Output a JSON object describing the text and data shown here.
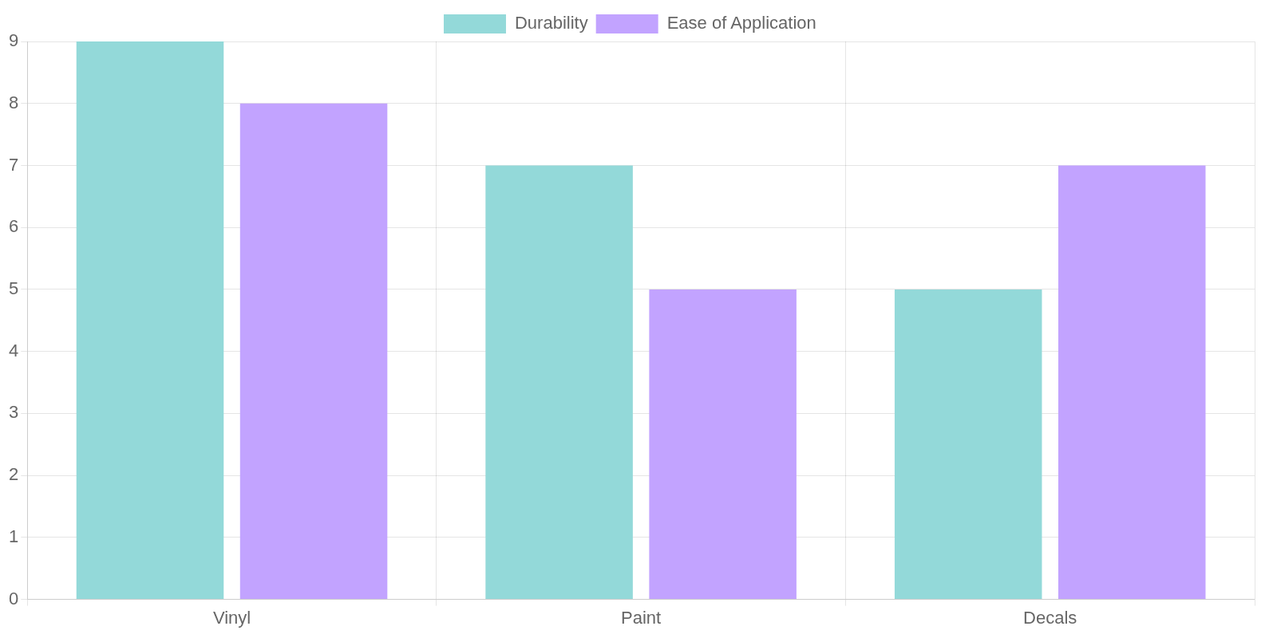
{
  "chart_data": {
    "type": "bar",
    "categories": [
      "Vinyl",
      "Paint",
      "Decals"
    ],
    "series": [
      {
        "name": "Durability",
        "color": "#93d9d9",
        "values": [
          9,
          7,
          5
        ]
      },
      {
        "name": "Ease of Application",
        "color": "#c2a3ff",
        "values": [
          8,
          5,
          7
        ]
      }
    ],
    "ylim": [
      0,
      9
    ],
    "yticks": [
      0,
      1,
      2,
      3,
      4,
      5,
      6,
      7,
      8,
      9
    ],
    "grid": true,
    "legend": "top"
  }
}
